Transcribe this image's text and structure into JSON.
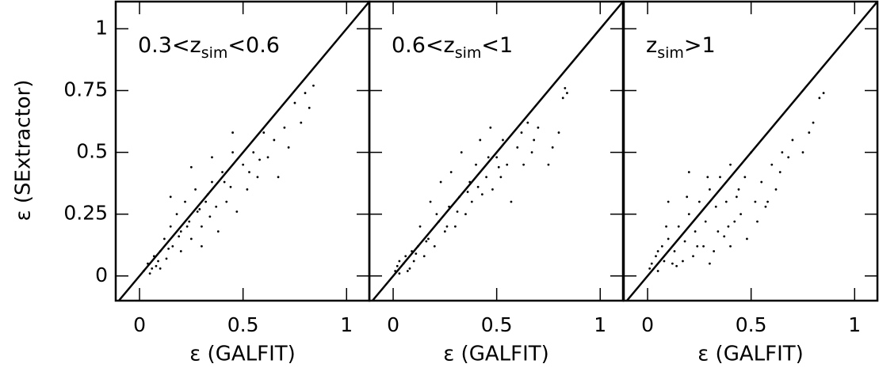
{
  "chart_data": [
    {
      "type": "scatter",
      "title": [
        "0.3<z",
        "sim",
        "<0.6"
      ],
      "xlabel": "ε (GALFIT)",
      "ylabel": "ε (SExtractor)",
      "color": "#000000",
      "xlim": [
        -0.115,
        1.11
      ],
      "ylim": [
        -0.1,
        1.11
      ],
      "xticks": [
        0,
        0.5,
        1
      ],
      "yticks": [
        0,
        0.25,
        0.5,
        0.75,
        1
      ],
      "ytick_labels": true,
      "diagonal": true,
      "x": [
        0.02,
        0.04,
        0.05,
        0.07,
        0.08,
        0.1,
        0.1,
        0.12,
        0.13,
        0.15,
        0.16,
        0.18,
        0.2,
        0.2,
        0.22,
        0.24,
        0.25,
        0.27,
        0.28,
        0.3,
        0.3,
        0.32,
        0.34,
        0.35,
        0.37,
        0.38,
        0.4,
        0.42,
        0.44,
        0.45,
        0.47,
        0.5,
        0.52,
        0.55,
        0.57,
        0.6,
        0.62,
        0.65,
        0.67,
        0.7,
        0.72,
        0.75,
        0.78,
        0.8,
        0.82,
        0.84,
        0.15,
        0.25,
        0.35,
        0.45,
        0.06,
        0.09,
        0.14,
        0.19,
        0.23,
        0.29,
        0.33,
        0.41,
        0.53,
        0.58
      ],
      "y": [
        0.02,
        0.05,
        0.01,
        0.08,
        0.04,
        0.1,
        0.03,
        0.15,
        0.07,
        0.2,
        0.12,
        0.25,
        0.18,
        0.1,
        0.3,
        0.22,
        0.15,
        0.35,
        0.26,
        0.2,
        0.12,
        0.3,
        0.24,
        0.38,
        0.28,
        0.18,
        0.42,
        0.3,
        0.36,
        0.5,
        0.26,
        0.45,
        0.35,
        0.5,
        0.4,
        0.58,
        0.48,
        0.55,
        0.4,
        0.6,
        0.52,
        0.7,
        0.62,
        0.74,
        0.68,
        0.77,
        0.32,
        0.44,
        0.48,
        0.58,
        0.03,
        0.06,
        0.11,
        0.16,
        0.2,
        0.27,
        0.33,
        0.38,
        0.42,
        0.47
      ]
    },
    {
      "type": "scatter",
      "title": [
        "0.6<z",
        "sim",
        "<1"
      ],
      "xlabel": "ε (GALFIT)",
      "color": "#000000",
      "xlim": [
        -0.115,
        1.11
      ],
      "ylim": [
        -0.1,
        1.11
      ],
      "xticks": [
        0,
        0.5,
        1
      ],
      "yticks": [
        0,
        0.25,
        0.5,
        0.75,
        1
      ],
      "ytick_labels": false,
      "diagonal": true,
      "x": [
        0.01,
        0.02,
        0.03,
        0.05,
        0.06,
        0.08,
        0.09,
        0.1,
        0.12,
        0.13,
        0.15,
        0.17,
        0.18,
        0.2,
        0.22,
        0.23,
        0.25,
        0.27,
        0.28,
        0.3,
        0.32,
        0.33,
        0.35,
        0.37,
        0.38,
        0.4,
        0.42,
        0.43,
        0.45,
        0.47,
        0.48,
        0.5,
        0.52,
        0.53,
        0.55,
        0.57,
        0.6,
        0.62,
        0.63,
        0.65,
        0.67,
        0.68,
        0.7,
        0.75,
        0.77,
        0.8,
        0.82,
        0.83,
        0.84,
        0.03,
        0.07,
        0.11,
        0.16,
        0.21,
        0.26,
        0.31,
        0.36,
        0.41,
        0.46,
        0.51
      ],
      "y": [
        0.02,
        0.04,
        0.01,
        0.05,
        0.08,
        0.03,
        0.1,
        0.06,
        0.12,
        0.2,
        0.08,
        0.15,
        0.3,
        0.12,
        0.22,
        0.38,
        0.18,
        0.28,
        0.42,
        0.2,
        0.32,
        0.5,
        0.25,
        0.38,
        0.3,
        0.45,
        0.55,
        0.33,
        0.4,
        0.6,
        0.35,
        0.48,
        0.4,
        0.55,
        0.45,
        0.3,
        0.52,
        0.58,
        0.45,
        0.62,
        0.5,
        0.55,
        0.6,
        0.45,
        0.52,
        0.58,
        0.72,
        0.76,
        0.74,
        0.06,
        0.02,
        0.09,
        0.14,
        0.25,
        0.2,
        0.26,
        0.34,
        0.36,
        0.48,
        0.44
      ]
    },
    {
      "type": "scatter",
      "title": [
        "z",
        "sim",
        ">1"
      ],
      "xlabel": "ε (GALFIT)",
      "color": "#000000",
      "xlim": [
        -0.115,
        1.11
      ],
      "ylim": [
        -0.1,
        1.11
      ],
      "xticks": [
        0,
        0.5,
        1
      ],
      "yticks": [
        0,
        0.25,
        0.5,
        0.75,
        1
      ],
      "ytick_labels": false,
      "diagonal": true,
      "x": [
        0.01,
        0.02,
        0.04,
        0.05,
        0.07,
        0.08,
        0.1,
        0.12,
        0.13,
        0.15,
        0.17,
        0.18,
        0.2,
        0.22,
        0.23,
        0.25,
        0.27,
        0.28,
        0.3,
        0.32,
        0.33,
        0.35,
        0.37,
        0.38,
        0.4,
        0.42,
        0.44,
        0.45,
        0.47,
        0.5,
        0.52,
        0.55,
        0.57,
        0.6,
        0.62,
        0.64,
        0.65,
        0.68,
        0.7,
        0.75,
        0.78,
        0.8,
        0.83,
        0.85,
        0.05,
        0.09,
        0.14,
        0.19,
        0.24,
        0.29,
        0.34,
        0.39,
        0.43,
        0.48,
        0.53,
        0.58,
        0.1,
        0.2,
        0.3,
        0.4
      ],
      "y": [
        0.03,
        0.05,
        0.08,
        0.02,
        0.12,
        0.06,
        0.15,
        0.05,
        0.1,
        0.2,
        0.06,
        0.14,
        0.25,
        0.08,
        0.18,
        0.3,
        0.12,
        0.22,
        0.35,
        0.1,
        0.28,
        0.4,
        0.16,
        0.3,
        0.45,
        0.22,
        0.35,
        0.25,
        0.4,
        0.5,
        0.3,
        0.38,
        0.28,
        0.45,
        0.35,
        0.42,
        0.5,
        0.48,
        0.55,
        0.5,
        0.58,
        0.62,
        0.72,
        0.74,
        0.1,
        0.2,
        0.04,
        0.32,
        0.12,
        0.4,
        0.18,
        0.2,
        0.32,
        0.15,
        0.22,
        0.3,
        0.3,
        0.42,
        0.05,
        0.12
      ]
    }
  ]
}
